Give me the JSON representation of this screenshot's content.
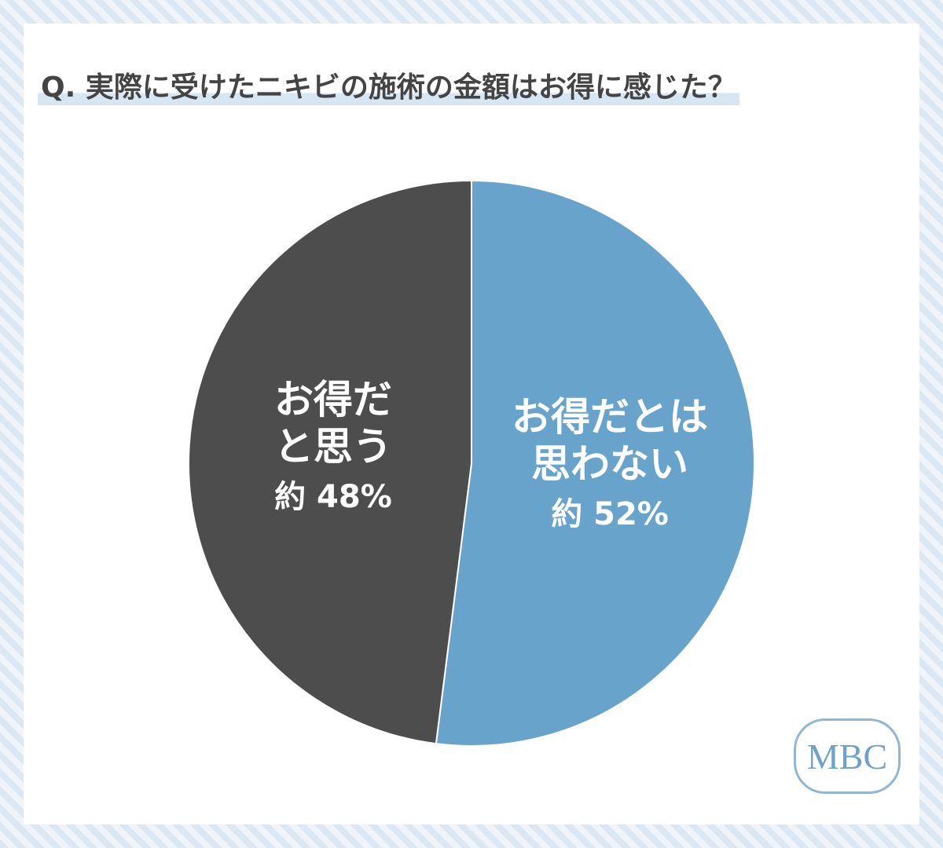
{
  "chart_data": {
    "type": "pie",
    "title": "Q. 実際に受けたニキビの施術の金額はお得に感じた？",
    "categories": [
      "お得だとは思わない",
      "お得だと思う"
    ],
    "values": [
      52,
      48
    ],
    "value_labels": [
      "約 52%",
      "約 48%"
    ],
    "colors": [
      "#67a3cb",
      "#4d4d4d"
    ],
    "start_angle": 0,
    "direction": "clockwise",
    "logo": "MBC"
  }
}
